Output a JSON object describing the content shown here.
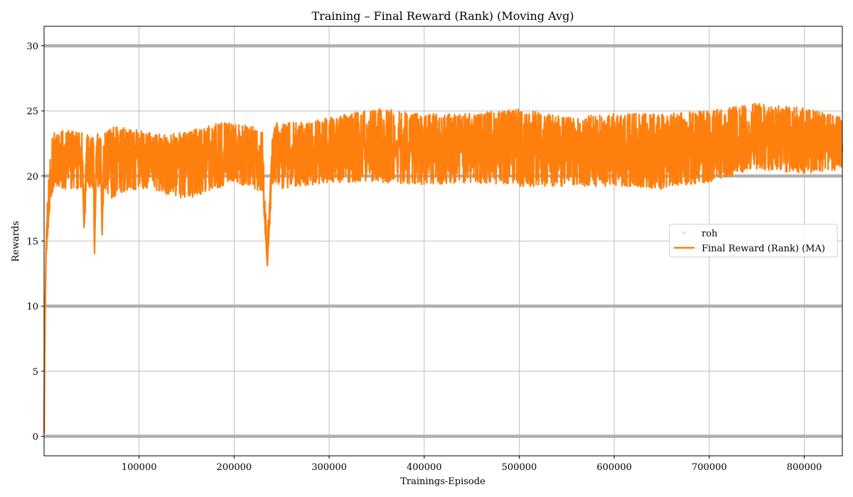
{
  "chart_data": {
    "type": "line",
    "title": "Training – Final Reward (Rank) (Moving Avg)",
    "xlabel": "Trainings-Episode",
    "ylabel": "Rewards",
    "xlim": [
      0,
      840000
    ],
    "ylim": [
      -1.5,
      31.5
    ],
    "x_ticks": [
      100000,
      200000,
      300000,
      400000,
      500000,
      600000,
      700000,
      800000
    ],
    "x_tick_labels": [
      "100000",
      "200000",
      "300000",
      "400000",
      "500000",
      "600000",
      "700000",
      "800000"
    ],
    "y_ticks": [
      0,
      5,
      10,
      15,
      20,
      25,
      30
    ],
    "y_tick_labels": [
      "0",
      "5",
      "10",
      "15",
      "20",
      "25",
      "30"
    ],
    "grid": true,
    "legend_position": "center-right",
    "reference_lines": {
      "name": "roh",
      "color": "#b0b0b0",
      "values": [
        0,
        10,
        20,
        30
      ]
    },
    "series": [
      {
        "name": "Final Reward (Rank) (MA)",
        "color": "#ff7f0e",
        "x": [
          0,
          1000,
          2000,
          3000,
          5000,
          8000,
          10000,
          15000,
          20000,
          30000,
          40000,
          42000,
          45000,
          52000,
          53000,
          55000,
          60000,
          61000,
          63000,
          70000,
          80000,
          100000,
          120000,
          150000,
          180000,
          200000,
          220000,
          230000,
          232000,
          235000,
          237000,
          240000,
          245000,
          250000,
          300000,
          350000,
          400000,
          450000,
          500000,
          550000,
          600000,
          650000,
          700000,
          750000,
          800000,
          840000
        ],
        "values": [
          0.2,
          9.0,
          13.5,
          16.0,
          18.0,
          20.5,
          21.0,
          21.3,
          21.4,
          21.3,
          21.5,
          16.0,
          21.4,
          21.3,
          14.0,
          21.5,
          21.2,
          15.5,
          21.4,
          21.0,
          21.2,
          21.5,
          21.3,
          21.0,
          21.4,
          21.8,
          21.5,
          20.5,
          17.0,
          13.2,
          16.5,
          21.0,
          21.8,
          21.6,
          22.0,
          22.5,
          21.8,
          22.2,
          22.5,
          22.0,
          21.8,
          21.9,
          22.3,
          22.7,
          22.8,
          22.5
        ],
        "band_low": [
          0.2,
          9.0,
          13.0,
          14.5,
          16.5,
          18.5,
          19.0,
          19.2,
          19.0,
          19.0,
          19.0,
          15.5,
          19.0,
          19.0,
          13.8,
          19.2,
          19.0,
          15.3,
          19.0,
          18.2,
          18.7,
          19.0,
          18.8,
          18.2,
          19.0,
          19.5,
          19.0,
          18.8,
          16.5,
          13.0,
          15.5,
          19.0,
          19.5,
          19.0,
          19.5,
          19.5,
          19.3,
          19.5,
          19.2,
          19.2,
          19.2,
          19.0,
          19.5,
          20.5,
          20.2,
          20.5
        ],
        "band_high": [
          0.2,
          9.0,
          14.0,
          17.5,
          20.0,
          23.0,
          23.5,
          23.5,
          23.6,
          23.5,
          23.3,
          18.0,
          23.3,
          23.0,
          16.0,
          23.3,
          23.2,
          17.5,
          23.5,
          23.8,
          23.8,
          23.5,
          23.2,
          23.4,
          24.0,
          24.2,
          23.8,
          23.5,
          18.5,
          15.5,
          18.0,
          23.2,
          24.3,
          24.0,
          24.5,
          25.2,
          24.8,
          24.8,
          25.2,
          24.5,
          24.8,
          24.8,
          25.0,
          25.6,
          25.2,
          24.5
        ]
      }
    ]
  }
}
